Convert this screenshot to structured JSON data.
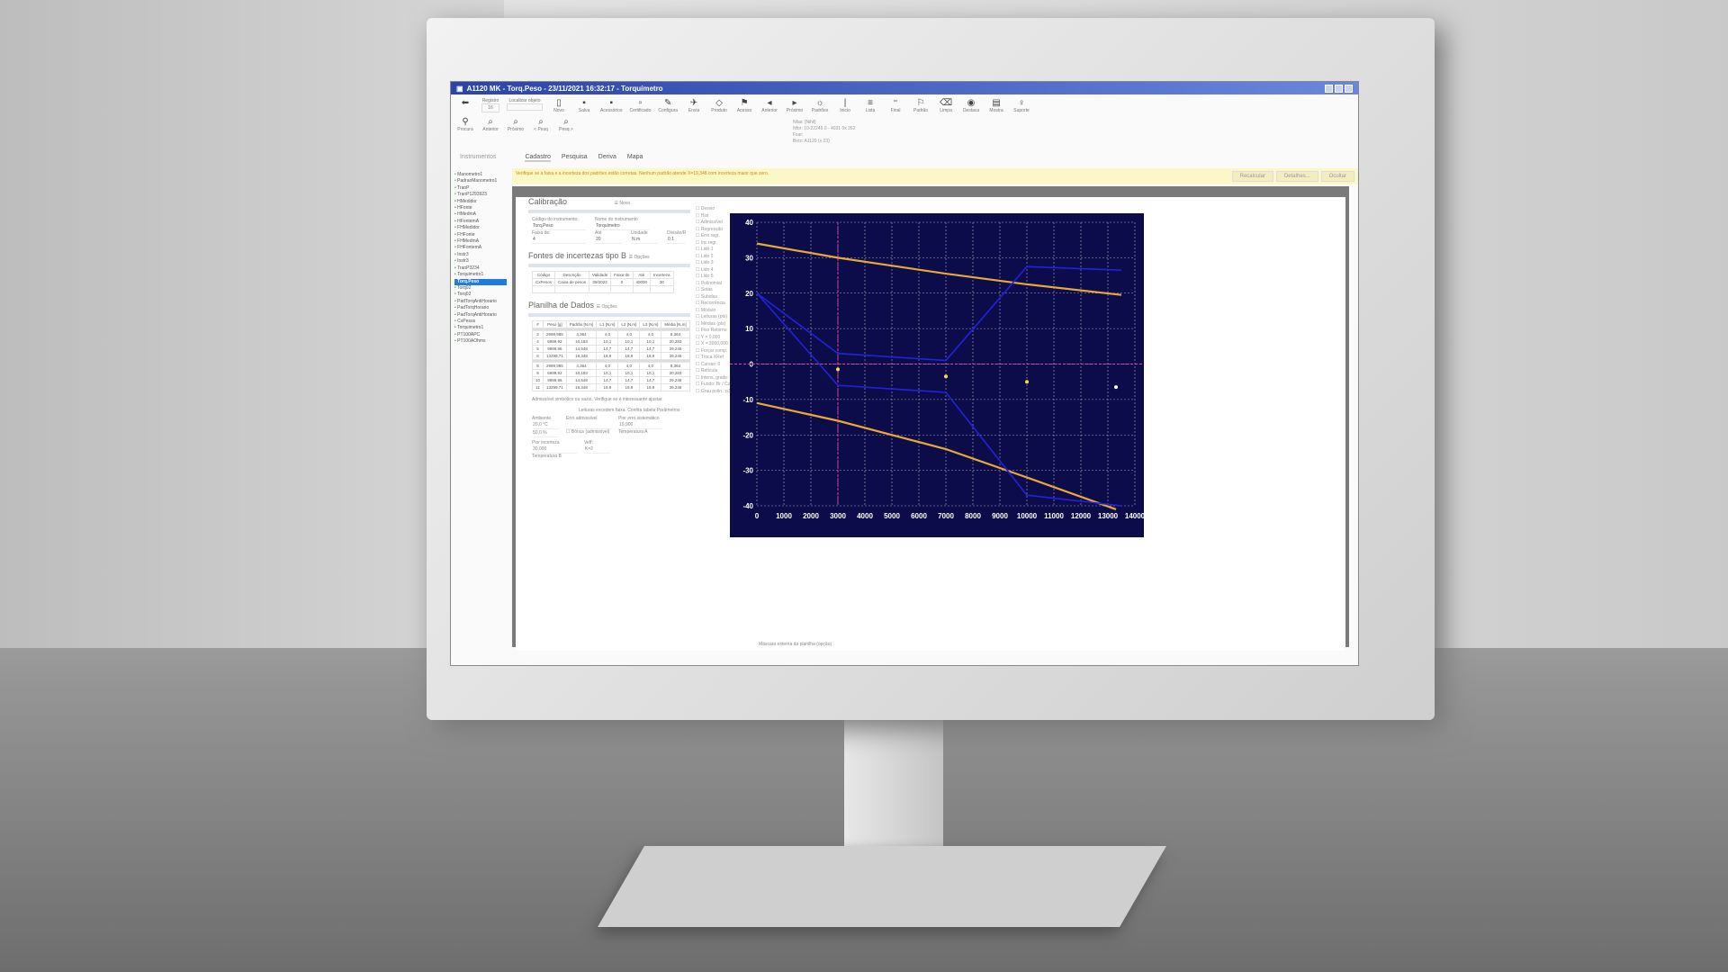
{
  "window": {
    "title": "A1120 MK - Torq.Peso - 23/11/2021 16:32:17 - Torquímetro"
  },
  "toolbar": {
    "registro_label": "Registro",
    "registro_value": "16",
    "localizar_label": "Localizar objeto",
    "buttons": [
      "Novo",
      "Salva",
      "Acessórios",
      "Certificado",
      "Configura",
      "Envia",
      "Produto",
      "Acesso",
      "Anterior",
      "Próximo",
      "Padrões",
      "Inicio",
      "Lista",
      "Final",
      "Padrão",
      "Limpa",
      "Destaca",
      "Mostra",
      "Suporte"
    ],
    "search_buttons": [
      "Procura",
      "Anterior",
      "Próximo",
      "< Pesq",
      "Pesq >"
    ],
    "info": [
      "Nfas: [Nihil]",
      "Nfor: 10-22245 0 - 4031 0x 262",
      "Fxar:",
      "Bxrz: A1120 (x 23)"
    ]
  },
  "tabs": {
    "left": "Instrumentos",
    "items": [
      "Cadastro",
      "Pesquisa",
      "Deriva",
      "Mapa"
    ]
  },
  "tree": [
    "Manometro1",
    "PadraoManometro1",
    "TranP",
    "TranP1293923",
    "HMedidor",
    "HFonte",
    "HMedmA",
    "HFontemA",
    "FHMedidor",
    "FHFonte",
    "FHMedmA",
    "FHFontemA",
    "Instr3",
    "Instr3",
    "TranP3234",
    "Torquimetro1",
    "Torq.Peso",
    "Torq02",
    "Torq02",
    "PadTorqAntiHorario",
    "PadTorqHorario",
    "PadTorqAntiHorario",
    "CxPesos",
    "Torquimetro1",
    "PT100APC",
    "PT100AOhms"
  ],
  "tree_selected": "Torq.Peso",
  "warning": {
    "text": "Verifique se a faixa e a incerteza dos padrões estão corretas. Nenhum padrão atende X=19,348 com incerteza maior que zero.",
    "buttons": [
      "Recalcular",
      "Detalhes...",
      "Ocultar"
    ]
  },
  "calibracao": {
    "title": "Calibração",
    "menu": "Novo",
    "codigo_label": "Código do instrumento:",
    "codigo": "Torq.Peso",
    "nome_label": "Nome do instrumento",
    "nome": "Torquímetro",
    "faixa_label": "Faixa de:",
    "faixa": "4",
    "ate_label": "Até",
    "ate": "20",
    "unidade_label": "Unidade",
    "unidade": "N.m",
    "divisao_label": "Divisão/R",
    "divisao": "0.1"
  },
  "fontes": {
    "title": "Fontes de incertezas tipo B",
    "menu": "Opções",
    "headers": [
      "Código",
      "Descrição",
      "Validade",
      "Faixa de",
      "Até",
      "Incerteza"
    ],
    "row": [
      "CxPesos",
      "Caixa de pesos",
      "09/2022",
      "0",
      "40000",
      "30"
    ]
  },
  "planilha": {
    "title": "Planilha de Dados",
    "menu": "Opções",
    "headers": [
      "#",
      "Peso [g]",
      "Padrão [N.m]",
      "L1 [N.m]",
      "L2 [N.m]",
      "L3 [N.m]",
      "Média [N.m]"
    ],
    "rows": [
      [
        "3",
        "2999,985",
        "4,364",
        "4,0",
        "4,0",
        "4,0",
        "8,364"
      ],
      [
        "4",
        "6999,92",
        "10,183",
        "10,1",
        "10,1",
        "10,1",
        "20,283"
      ],
      [
        "5",
        "9999,96",
        "14,548",
        "14,7",
        "14,7",
        "14,7",
        "29,248"
      ],
      [
        "6",
        "13299,71",
        "19,348",
        "19,9",
        "19,9",
        "19,9",
        "39,248"
      ],
      [
        "8",
        "2999,985",
        "4,364",
        "4,0",
        "4,0",
        "4,0",
        "8,364"
      ],
      [
        "9",
        "6999,92",
        "10,183",
        "10,1",
        "10,1",
        "10,1",
        "20,283"
      ],
      [
        "10",
        "9999,96",
        "14,548",
        "14,7",
        "14,7",
        "14,7",
        "29,248"
      ],
      [
        "11",
        "13299,71",
        "19,348",
        "19,9",
        "19,9",
        "19,9",
        "39,248"
      ]
    ],
    "note": "Admissível simbólico ou vazio. Verifique se é interessante ajustar.",
    "note2": "Leituras excedem faixa. Confira tabela Parâmetros",
    "ambiente_label": "Ambiente",
    "temp": "20,0 °C",
    "umid": "50,0 %",
    "erro_label": "Erro admissível",
    "bonus_label": "Bônus (admissível)",
    "pior_erro_label": "Pior erro sistemático",
    "pior_erro": "19,900",
    "pior_inc_label": "Pior incerteza",
    "pior_inc": "30,000",
    "temp_a": "Temperatura A",
    "temp_b": "Temperatura B",
    "veff_label": "Veff:",
    "veff": "K=2"
  },
  "options": [
    "Desvio",
    "Hist",
    "Admissível",
    "Regressão",
    "Erro regr.",
    "Inc regr.",
    "Lido 1",
    "Lido 2",
    "Lido 3",
    "Lido 4",
    "Lido 5",
    "Polinomial",
    "Setas",
    "Subidas",
    "Recorrência",
    "Módulo",
    "Leituras (pts)",
    "Médias (pts)",
    "Fixo Retorno",
    "Y = 0,000",
    "X = 3000,000",
    "Forçar comp.",
    "Troca XRef",
    "Curvas: 0",
    "Retícula",
    "Intens. grade: 100",
    "Fundo: Br / Cz- / Cz+ / Pr",
    "Grau polin.: p3"
  ],
  "footer": "Máscara externa da planilha (opção)",
  "chart_data": {
    "type": "line",
    "xlim": [
      0,
      14000
    ],
    "ylim": [
      -40,
      40
    ],
    "grid": true,
    "xticks": [
      0,
      1000,
      2000,
      3000,
      4000,
      5000,
      6000,
      7000,
      8000,
      9000,
      10000,
      11000,
      12000,
      13000,
      14000
    ],
    "yticks": [
      -40,
      -30,
      -20,
      -10,
      0,
      10,
      20,
      30,
      40
    ],
    "background": "#0c0c4a",
    "colors": {
      "limit": "#e8a838",
      "band": "#2222dd",
      "cursor": "#e0409a",
      "point": "#f0e040"
    },
    "series": [
      {
        "role": "upper-limit",
        "x": [
          0,
          3000,
          7000,
          10000,
          13500
        ],
        "y": [
          34,
          30,
          25.5,
          22.5,
          19.5
        ]
      },
      {
        "role": "lower-limit",
        "x": [
          0,
          3000,
          7000,
          10000,
          13300
        ],
        "y": [
          -11,
          -16,
          -24,
          -32,
          -41
        ]
      },
      {
        "role": "upper-band",
        "x": [
          0,
          3000,
          7000,
          10000,
          13500
        ],
        "y": [
          20,
          3,
          1,
          27.5,
          26.5
        ]
      },
      {
        "role": "lower-band",
        "x": [
          0,
          3000,
          7000,
          10000,
          13500
        ],
        "y": [
          20,
          -6,
          -8,
          -37,
          -40
        ]
      }
    ],
    "points": {
      "x": [
        3000,
        7000,
        10000,
        13300
      ],
      "y": [
        -1.5,
        -3.5,
        -5,
        -6.5
      ]
    },
    "cursor": {
      "x": 3000,
      "y": 0
    }
  }
}
